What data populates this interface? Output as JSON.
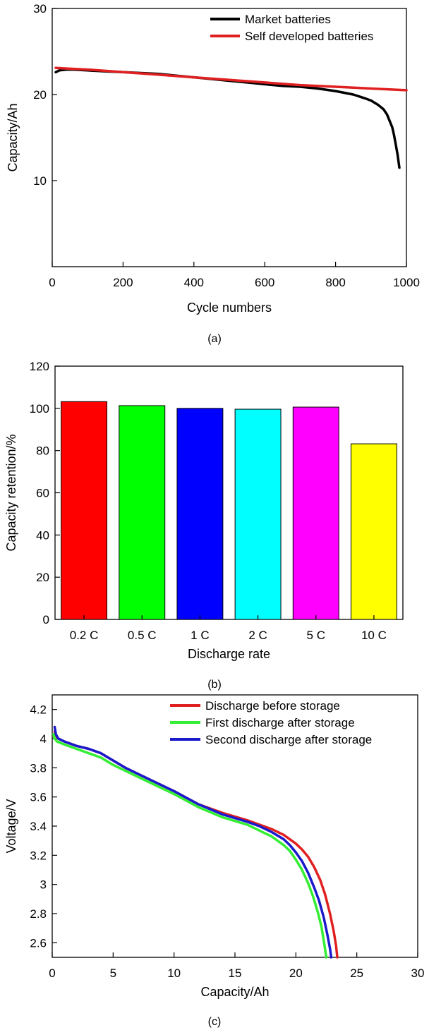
{
  "panels": {
    "a": {
      "label": "(a)"
    },
    "b": {
      "label": "(b)"
    },
    "c": {
      "label": "(c)"
    }
  },
  "chart_data": [
    {
      "id": "a",
      "type": "line",
      "xlabel": "Cycle numbers",
      "ylabel": "Capacity/Ah",
      "xlim": [
        0,
        1000
      ],
      "ylim": [
        0,
        30
      ],
      "xticks": [
        0,
        200,
        400,
        600,
        800,
        1000
      ],
      "yticks": [
        10,
        20,
        30
      ],
      "grid": false,
      "legend": "top-right",
      "series": [
        {
          "name": "Market batteries",
          "color": "#000000",
          "x": [
            10,
            20,
            40,
            60,
            100,
            150,
            200,
            250,
            300,
            350,
            400,
            450,
            500,
            550,
            600,
            650,
            700,
            750,
            800,
            850,
            880,
            900,
            920,
            935,
            945,
            952,
            960,
            965,
            970,
            975,
            980
          ],
          "y": [
            22.6,
            22.8,
            22.9,
            22.9,
            22.8,
            22.7,
            22.6,
            22.5,
            22.4,
            22.2,
            22.0,
            21.8,
            21.6,
            21.4,
            21.2,
            21.0,
            20.9,
            20.7,
            20.4,
            20.0,
            19.6,
            19.3,
            18.8,
            18.3,
            17.7,
            17.0,
            16.2,
            15.3,
            14.2,
            13.0,
            11.5
          ]
        },
        {
          "name": "Self developed batteries",
          "color": "#e02020",
          "x": [
            10,
            50,
            100,
            200,
            300,
            400,
            500,
            600,
            700,
            800,
            900,
            1000
          ],
          "y": [
            23.1,
            23.0,
            22.9,
            22.6,
            22.3,
            22.0,
            21.7,
            21.4,
            21.1,
            20.9,
            20.7,
            20.5
          ]
        }
      ]
    },
    {
      "id": "b",
      "type": "bar",
      "xlabel": "Discharge rate",
      "ylabel": "Capacity retention/%",
      "ylim": [
        0,
        120
      ],
      "yticks": [
        0,
        20,
        40,
        60,
        80,
        100,
        120
      ],
      "grid": false,
      "categories": [
        "0.2 C",
        "0.5 C",
        "1 C",
        "2 C",
        "5 C",
        "10 C"
      ],
      "values": [
        103.2,
        101.3,
        100.0,
        99.6,
        100.6,
        83.2
      ],
      "colors": [
        "#ff0000",
        "#00ff00",
        "#0000ff",
        "#00ffff",
        "#ff00ff",
        "#ffff00"
      ]
    },
    {
      "id": "c",
      "type": "line",
      "xlabel": "Capacity/Ah",
      "ylabel": "Voltage/V",
      "xlim": [
        0,
        30
      ],
      "ylim": [
        2.5,
        4.3
      ],
      "xticks": [
        0,
        5,
        10,
        15,
        20,
        25,
        30
      ],
      "yticks": [
        2.6,
        2.8,
        3.0,
        3.2,
        3.4,
        3.6,
        3.8,
        4.0,
        4.2
      ],
      "grid": false,
      "legend": "top-right",
      "series": [
        {
          "name": "Discharge before storage",
          "color": "#e02020",
          "x": [
            0.2,
            0.3,
            0.5,
            1,
            2,
            3,
            4,
            5,
            6,
            8,
            10,
            12,
            14,
            16,
            17,
            18,
            19,
            20,
            20.5,
            21,
            21.5,
            22,
            22.4,
            22.8,
            23.1,
            23.3,
            23.4
          ],
          "y": [
            4.05,
            4.02,
            4.0,
            3.98,
            3.95,
            3.93,
            3.9,
            3.85,
            3.8,
            3.72,
            3.64,
            3.55,
            3.49,
            3.44,
            3.41,
            3.38,
            3.34,
            3.28,
            3.24,
            3.19,
            3.12,
            3.03,
            2.93,
            2.8,
            2.68,
            2.58,
            2.5
          ]
        },
        {
          "name": "First discharge after storage",
          "color": "#33ee33",
          "x": [
            0.1,
            0.2,
            0.4,
            1,
            2,
            3,
            4,
            5,
            6,
            8,
            10,
            12,
            14,
            16,
            17,
            18,
            19,
            19.5,
            20,
            20.5,
            21,
            21.4,
            21.8,
            22.1,
            22.3,
            22.5
          ],
          "y": [
            4.03,
            4.0,
            3.98,
            3.96,
            3.93,
            3.9,
            3.87,
            3.82,
            3.78,
            3.7,
            3.62,
            3.53,
            3.46,
            3.41,
            3.37,
            3.33,
            3.27,
            3.23,
            3.17,
            3.1,
            3.01,
            2.92,
            2.81,
            2.71,
            2.61,
            2.5
          ]
        },
        {
          "name": "Second discharge after storage",
          "color": "#1a1acc",
          "x": [
            0.2,
            0.3,
            0.5,
            1,
            2,
            3,
            4,
            5,
            6,
            8,
            10,
            12,
            14,
            16,
            17,
            18,
            19,
            19.5,
            20,
            20.5,
            21,
            21.5,
            21.9,
            22.3,
            22.6,
            22.8,
            22.9
          ],
          "y": [
            4.08,
            4.03,
            4.0,
            3.98,
            3.95,
            3.93,
            3.9,
            3.85,
            3.8,
            3.72,
            3.64,
            3.55,
            3.48,
            3.43,
            3.4,
            3.36,
            3.31,
            3.27,
            3.22,
            3.16,
            3.08,
            2.98,
            2.89,
            2.77,
            2.65,
            2.56,
            2.5
          ]
        }
      ]
    }
  ]
}
